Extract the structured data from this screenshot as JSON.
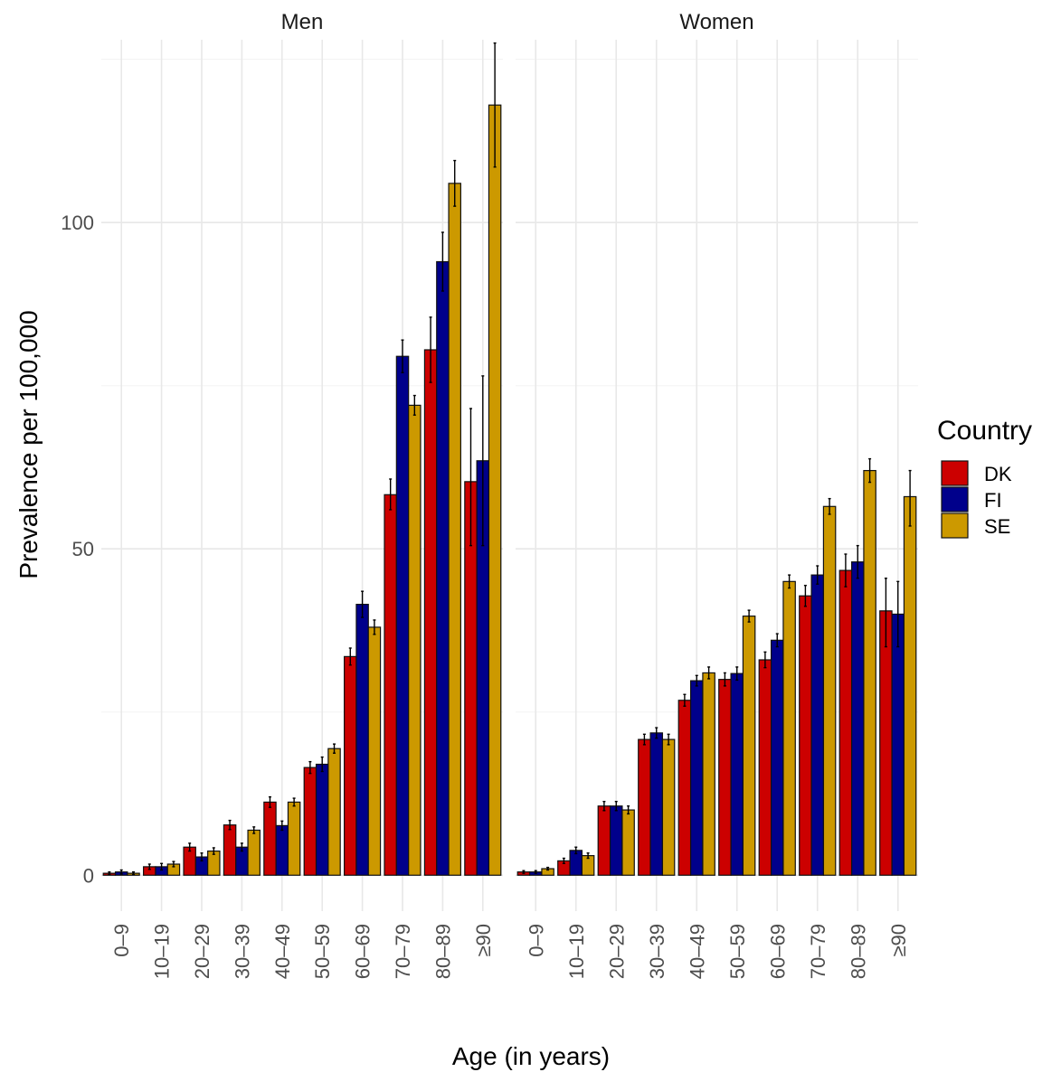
{
  "chart_data": {
    "type": "bar",
    "xlabel": "Age (in years)",
    "ylabel": "Prevalence per 100,000",
    "ylim": [
      -5.5,
      128
    ],
    "yticks": [
      0,
      50,
      100
    ],
    "categories": [
      "0–9",
      "10–19",
      "20–29",
      "30–39",
      "40–49",
      "50–59",
      "60–69",
      "70–79",
      "80–89",
      "≥90"
    ],
    "legend": {
      "title": "Country",
      "placement": "right",
      "entries": [
        {
          "name": "DK",
          "color": "#cc0000"
        },
        {
          "name": "FI",
          "color": "#00008b"
        },
        {
          "name": "SE",
          "color": "#cc9900"
        }
      ]
    },
    "facets": [
      {
        "title": "Men",
        "series": [
          {
            "name": "DK",
            "values": [
              0.3,
              1.3,
              4.3,
              7.7,
              11.2,
              16.5,
              33.5,
              58.3,
              80.5,
              60.3
            ],
            "lower": [
              0.1,
              0.9,
              3.7,
              7.0,
              10.4,
              15.6,
              32.2,
              56.0,
              75.5,
              50.5
            ],
            "upper": [
              0.5,
              1.7,
              4.9,
              8.4,
              12.0,
              17.4,
              34.8,
              60.7,
              85.5,
              71.5
            ]
          },
          {
            "name": "FI",
            "values": [
              0.5,
              1.3,
              2.8,
              4.3,
              7.6,
              17.0,
              41.5,
              79.5,
              94.0,
              63.5
            ],
            "lower": [
              0.2,
              0.8,
              2.2,
              3.7,
              6.9,
              15.9,
              39.5,
              77.0,
              89.5,
              50.5
            ],
            "upper": [
              0.8,
              1.8,
              3.4,
              4.9,
              8.3,
              18.1,
              43.5,
              82.0,
              98.5,
              76.5
            ]
          },
          {
            "name": "SE",
            "values": [
              0.3,
              1.7,
              3.7,
              6.9,
              11.2,
              19.4,
              38.0,
              72.0,
              106.0,
              118.0
            ],
            "lower": [
              0.1,
              1.3,
              3.2,
              6.4,
              10.6,
              18.7,
              36.9,
              70.5,
              102.5,
              108.5
            ],
            "upper": [
              0.5,
              2.1,
              4.2,
              7.4,
              11.8,
              20.1,
              39.1,
              73.5,
              109.5,
              127.5
            ]
          }
        ]
      },
      {
        "title": "Women",
        "series": [
          {
            "name": "DK",
            "values": [
              0.5,
              2.2,
              10.6,
              20.8,
              26.8,
              30.0,
              33.0,
              42.8,
              46.7,
              40.5
            ],
            "lower": [
              0.3,
              1.8,
              9.9,
              20.0,
              25.9,
              29.0,
              31.8,
              41.2,
              44.2,
              35.0
            ],
            "upper": [
              0.7,
              2.6,
              11.3,
              21.6,
              27.7,
              31.0,
              34.2,
              44.4,
              49.2,
              45.5
            ]
          },
          {
            "name": "FI",
            "values": [
              0.5,
              3.8,
              10.6,
              21.8,
              29.8,
              30.9,
              36.0,
              46.0,
              48.0,
              40.0
            ],
            "lower": [
              0.3,
              3.3,
              9.9,
              21.0,
              29.0,
              29.9,
              35.0,
              44.6,
              45.5,
              35.0
            ],
            "upper": [
              0.7,
              4.3,
              11.3,
              22.6,
              30.6,
              31.9,
              37.0,
              47.4,
              50.5,
              45.0
            ]
          },
          {
            "name": "SE",
            "values": [
              1.0,
              3.0,
              10.0,
              20.8,
              31.0,
              39.7,
              45.0,
              56.5,
              62.0,
              58.0
            ],
            "lower": [
              0.8,
              2.6,
              9.4,
              20.0,
              30.1,
              38.8,
              44.0,
              55.3,
              60.2,
              53.5
            ],
            "upper": [
              1.2,
              3.4,
              10.6,
              21.6,
              31.9,
              40.6,
              46.0,
              57.7,
              63.8,
              62.0
            ]
          }
        ]
      }
    ]
  }
}
